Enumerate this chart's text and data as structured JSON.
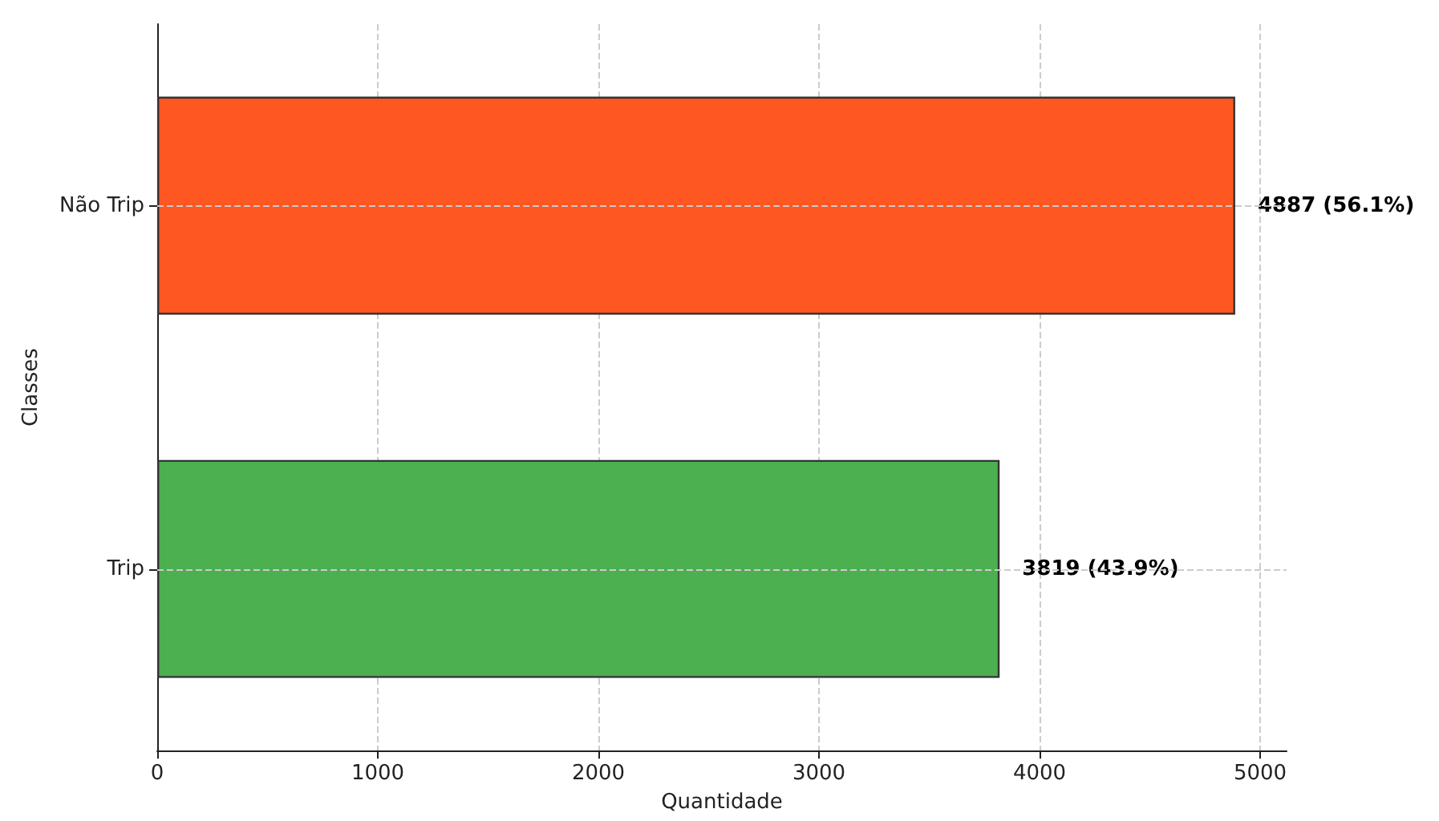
{
  "chart_data": {
    "type": "bar",
    "orientation": "horizontal",
    "xlabel": "Quantidade",
    "ylabel": "Classes",
    "categories": [
      "Não Trip",
      "Trip"
    ],
    "values": [
      4887,
      3819
    ],
    "colors": [
      "#ff5722",
      "#4caf50"
    ],
    "value_labels": [
      "4887 (56.1%)",
      "3819 (43.9%)"
    ],
    "xlim": [
      0,
      5120
    ],
    "xticks": [
      0,
      1000,
      2000,
      3000,
      4000,
      5000
    ],
    "grid": true
  }
}
